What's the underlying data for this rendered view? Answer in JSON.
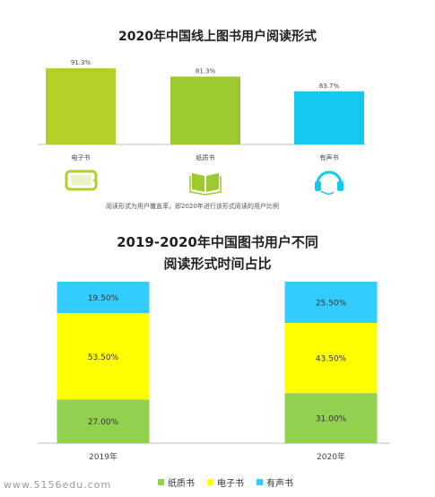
{
  "watermark": "www.5156edu.com",
  "note": "阅读形式为用户覆盖率，即2020年进行该形式阅读的用户比例",
  "chart_data": [
    {
      "type": "bar",
      "title": "2020年中国线上图书用户阅读形式",
      "categories": [
        "电子书",
        "纸质书",
        "有声书"
      ],
      "values": [
        91.3,
        81.3,
        63.7
      ],
      "value_labels": [
        "91.3%",
        "81.3%",
        "63.7%"
      ],
      "colors": [
        "#b3cf2a",
        "#9dc92e",
        "#14c8f0"
      ],
      "icons": [
        "tablet-icon",
        "open-book-icon",
        "headphones-icon"
      ],
      "ylim": [
        0,
        100
      ],
      "grid": false
    },
    {
      "type": "bar",
      "stacked": true,
      "title_lines": [
        "2019-2020年中国图书用户不同",
        "阅读形式时间占比"
      ],
      "categories": [
        "2019年",
        "2020年"
      ],
      "series": [
        {
          "name": "纸质书",
          "values": [
            27.0,
            31.0
          ],
          "labels": [
            "27.00%",
            "31.00%"
          ],
          "color": "#92d050"
        },
        {
          "name": "电子书",
          "values": [
            53.5,
            43.5
          ],
          "labels": [
            "53.50%",
            "43.50%"
          ],
          "color": "#ffff00"
        },
        {
          "name": "有声书",
          "values": [
            19.5,
            25.5
          ],
          "labels": [
            "19.50%",
            "25.50%"
          ],
          "color": "#33ccff"
        }
      ],
      "ylim": [
        0,
        100
      ],
      "legend_position": "bottom",
      "grid": false
    }
  ]
}
